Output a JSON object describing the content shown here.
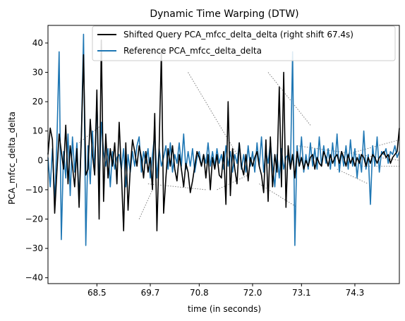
{
  "chart_data": {
    "type": "line",
    "title": "Dynamic Time Warping (DTW)",
    "xlabel": "time (in seconds)",
    "ylabel": "PCA_mfcc_delta_delta",
    "xlim": [
      67.4,
      75.3
    ],
    "ylim": [
      -42,
      46
    ],
    "xticks": [
      68.5,
      69.7,
      70.8,
      72.0,
      73.1,
      74.3
    ],
    "xtick_labels": [
      "68.5",
      "69.7",
      "70.8",
      "72.0",
      "73.1",
      "74.3"
    ],
    "yticks": [
      -40,
      -30,
      -20,
      -10,
      0,
      10,
      20,
      30,
      40
    ],
    "ytick_labels": [
      "−40",
      "−30",
      "−20",
      "−10",
      "0",
      "10",
      "20",
      "30",
      "40"
    ],
    "grid": false,
    "legend_position": "top-right",
    "series": [
      {
        "name": "Shifted Query PCA_mfcc_delta_delta (right shift 67.4s)",
        "color": "#000000",
        "x": [
          67.4,
          67.45,
          67.5,
          67.55,
          67.6,
          67.65,
          67.7,
          67.75,
          67.8,
          67.85,
          67.9,
          67.95,
          68.0,
          68.05,
          68.1,
          68.15,
          68.2,
          68.25,
          68.3,
          68.35,
          68.4,
          68.45,
          68.5,
          68.55,
          68.6,
          68.65,
          68.7,
          68.75,
          68.8,
          68.85,
          68.9,
          68.95,
          69.0,
          69.05,
          69.1,
          69.15,
          69.2,
          69.25,
          69.3,
          69.35,
          69.4,
          69.45,
          69.5,
          69.55,
          69.6,
          69.65,
          69.7,
          69.75,
          69.8,
          69.85,
          69.9,
          69.95,
          70.0,
          70.05,
          70.1,
          70.15,
          70.2,
          70.25,
          70.3,
          70.35,
          70.4,
          70.45,
          70.5,
          70.55,
          70.6,
          70.65,
          70.7,
          70.75,
          70.8,
          70.85,
          70.9,
          70.95,
          71.0,
          71.05,
          71.1,
          71.15,
          71.2,
          71.25,
          71.3,
          71.35,
          71.4,
          71.45,
          71.5,
          71.55,
          71.6,
          71.65,
          71.7,
          71.75,
          71.8,
          71.85,
          71.9,
          71.95,
          72.0,
          72.05,
          72.1,
          72.15,
          72.2,
          72.25,
          72.3,
          72.35,
          72.4,
          72.45,
          72.5,
          72.55,
          72.6,
          72.65,
          72.7,
          72.75,
          72.8,
          72.85,
          72.9,
          72.95,
          73.0,
          73.05,
          73.1,
          73.15,
          73.2,
          73.25,
          73.3,
          73.35,
          73.4,
          73.45,
          73.5,
          73.55,
          73.6,
          73.65,
          73.7,
          73.75,
          73.8,
          73.85,
          73.9,
          73.95,
          74.0,
          74.05,
          74.1,
          74.15,
          74.2,
          74.25,
          74.3,
          74.35,
          74.4,
          74.45,
          74.5,
          74.55,
          74.6,
          74.65,
          74.7,
          74.75,
          74.8,
          74.85,
          74.9,
          74.95,
          75.0,
          75.05,
          75.1,
          75.15,
          75.2,
          75.25,
          75.3
        ],
        "values": [
          2,
          11,
          7,
          -18,
          -4,
          9,
          3,
          -3,
          12,
          -8,
          5,
          -2,
          -9,
          4,
          -16,
          8,
          36,
          -5,
          -3,
          14,
          2,
          -5,
          24,
          -20,
          41,
          -14,
          9,
          -6,
          4,
          -2,
          6,
          -8,
          13,
          -4,
          -24,
          6,
          -17,
          -3,
          7,
          3,
          -2,
          5,
          1,
          -6,
          3,
          -4,
          1,
          -10,
          16,
          -24,
          5,
          37,
          -18,
          -6,
          4,
          -2,
          5,
          -3,
          -7,
          2,
          -3,
          -9,
          -1,
          -4,
          -11,
          -7,
          -2,
          3,
          1,
          -2,
          2,
          -6,
          2,
          -10,
          1,
          -3,
          2,
          -5,
          -6,
          3,
          -15,
          20,
          -12,
          4,
          -3,
          -8,
          6,
          -2,
          -5,
          2,
          -7,
          1,
          -2,
          1,
          3,
          -2,
          -5,
          -11,
          7,
          -14,
          8,
          -9,
          2,
          -4,
          25,
          -9,
          30,
          -16,
          5,
          -3,
          2,
          -6,
          3,
          -2,
          1,
          -3,
          0,
          -2,
          1,
          2,
          -3,
          1,
          -1,
          -2,
          3,
          1,
          -2,
          2,
          -1,
          1,
          2,
          -1,
          3,
          1,
          -2,
          2,
          -1,
          1,
          -2,
          1,
          -1,
          2,
          1,
          -2,
          1,
          -1,
          2,
          1,
          -1,
          1,
          2,
          3,
          1,
          2,
          -1,
          1,
          2,
          3,
          11
        ]
      },
      {
        "name": "Reference PCA_mfcc_delta_delta",
        "color": "#1f77b4",
        "x": [
          67.4,
          67.45,
          67.5,
          67.55,
          67.6,
          67.65,
          67.7,
          67.75,
          67.8,
          67.85,
          67.9,
          67.95,
          68.0,
          68.05,
          68.1,
          68.15,
          68.2,
          68.25,
          68.3,
          68.35,
          68.4,
          68.45,
          68.5,
          68.55,
          68.6,
          68.65,
          68.7,
          68.75,
          68.8,
          68.85,
          68.9,
          68.95,
          69.0,
          69.05,
          69.1,
          69.15,
          69.2,
          69.25,
          69.3,
          69.35,
          69.4,
          69.45,
          69.5,
          69.55,
          69.6,
          69.65,
          69.7,
          69.75,
          69.8,
          69.85,
          69.9,
          69.95,
          70.0,
          70.05,
          70.1,
          70.15,
          70.2,
          70.25,
          70.3,
          70.35,
          70.4,
          70.45,
          70.5,
          70.55,
          70.6,
          70.65,
          70.7,
          70.75,
          70.8,
          70.85,
          70.9,
          70.95,
          71.0,
          71.05,
          71.1,
          71.15,
          71.2,
          71.25,
          71.3,
          71.35,
          71.4,
          71.45,
          71.5,
          71.55,
          71.6,
          71.65,
          71.7,
          71.75,
          71.8,
          71.85,
          71.9,
          71.95,
          72.0,
          72.05,
          72.1,
          72.15,
          72.2,
          72.25,
          72.3,
          72.35,
          72.4,
          72.45,
          72.5,
          72.55,
          72.6,
          72.65,
          72.7,
          72.75,
          72.8,
          72.85,
          72.9,
          72.95,
          73.0,
          73.05,
          73.1,
          73.15,
          73.2,
          73.25,
          73.3,
          73.35,
          73.4,
          73.45,
          73.5,
          73.55,
          73.6,
          73.65,
          73.7,
          73.75,
          73.8,
          73.85,
          73.9,
          73.95,
          74.0,
          74.05,
          74.1,
          74.15,
          74.2,
          74.25,
          74.3,
          74.35,
          74.4,
          74.45,
          74.5,
          74.55,
          74.6,
          74.65,
          74.7,
          74.75,
          74.8,
          74.85,
          74.9,
          74.95,
          75.0,
          75.05,
          75.1,
          75.15,
          75.2,
          75.25,
          75.3
        ],
        "values": [
          1,
          -9,
          4,
          -14,
          6,
          37,
          -27,
          3,
          -6,
          9,
          -12,
          8,
          -4,
          6,
          -14,
          8,
          43,
          -29,
          5,
          -8,
          10,
          -4,
          21,
          -9,
          13,
          3,
          -2,
          4,
          -9,
          3,
          -3,
          1,
          2,
          -3,
          4,
          -9,
          2,
          -4,
          3,
          -2,
          5,
          8,
          -4,
          3,
          -1,
          4,
          -6,
          2,
          9,
          -6,
          4,
          -2,
          1,
          5,
          -3,
          6,
          -4,
          2,
          -1,
          6,
          -2,
          9,
          -3,
          3,
          -2,
          4,
          -4,
          1,
          3,
          -2,
          2,
          -1,
          6,
          -2,
          3,
          -2,
          4,
          -1,
          2,
          -3,
          5,
          -2,
          3,
          -4,
          2,
          -1,
          6,
          -3,
          2,
          -4,
          5,
          -2,
          3,
          -4,
          6,
          -2,
          8,
          -4,
          3,
          -1,
          6,
          -2,
          -9,
          2,
          -6,
          4,
          -3,
          1,
          2,
          -3,
          37,
          -29,
          5,
          -2,
          8,
          -4,
          2,
          -3,
          6,
          -2,
          4,
          -3,
          8,
          -2,
          5,
          -1,
          4,
          -3,
          6,
          -2,
          9,
          -4,
          3,
          -2,
          5,
          -3,
          7,
          -2,
          4,
          -6,
          2,
          -4,
          10,
          -3,
          2,
          -15,
          5,
          -2,
          8,
          -4,
          3,
          2,
          4,
          -1,
          3,
          2,
          5,
          1,
          3
        ]
      }
    ],
    "dtw_links": [
      {
        "x1": 70.55,
        "y1": 30,
        "x2": 71.65,
        "y2": 2
      },
      {
        "x1": 72.35,
        "y1": 30,
        "x2": 73.3,
        "y2": 12
      },
      {
        "x1": 69.65,
        "y1": -8,
        "x2": 70.95,
        "y2": -10
      },
      {
        "x1": 69.45,
        "y1": -20,
        "x2": 69.75,
        "y2": -10
      },
      {
        "x1": 71.2,
        "y1": -10,
        "x2": 71.9,
        "y2": -5
      },
      {
        "x1": 72.15,
        "y1": -8,
        "x2": 73.0,
        "y2": -16
      },
      {
        "x1": 74.1,
        "y1": 2,
        "x2": 75.3,
        "y2": 7
      },
      {
        "x1": 73.0,
        "y1": 5,
        "x2": 75.3,
        "y2": 0
      },
      {
        "x1": 74.45,
        "y1": -2,
        "x2": 75.3,
        "y2": -2
      },
      {
        "x1": 68.1,
        "y1": 6,
        "x2": 68.6,
        "y2": 12
      },
      {
        "x1": 73.9,
        "y1": -3,
        "x2": 74.6,
        "y2": -8
      }
    ]
  }
}
